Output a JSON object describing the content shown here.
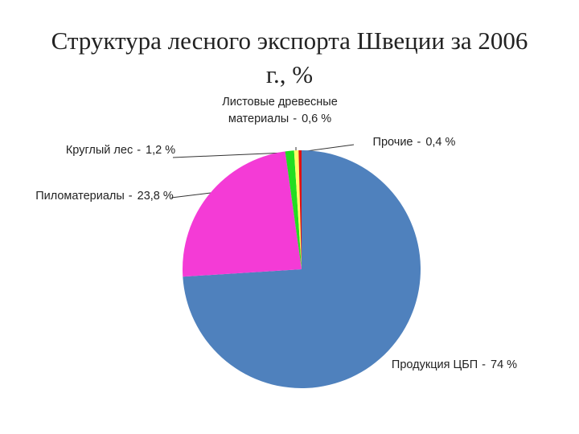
{
  "chart_data": {
    "type": "pie",
    "title": "Структура лесного экспорта Швеции за 2006 г., %",
    "categories": [
      "Продукция ЦБП",
      "Пиломатериалы",
      "Круглый лес",
      "Листовые древесные материалы",
      "Прочие"
    ],
    "values": [
      74,
      23.8,
      1.2,
      0.6,
      0.4
    ],
    "value_labels": [
      "74 %",
      "23,8 %",
      "1,2 %",
      "0,6 %",
      "0,4 %"
    ],
    "separator": "-",
    "colors": [
      "#4f81bd",
      "#f43bd6",
      "#22dd22",
      "#ffff66",
      "#e01010"
    ]
  }
}
